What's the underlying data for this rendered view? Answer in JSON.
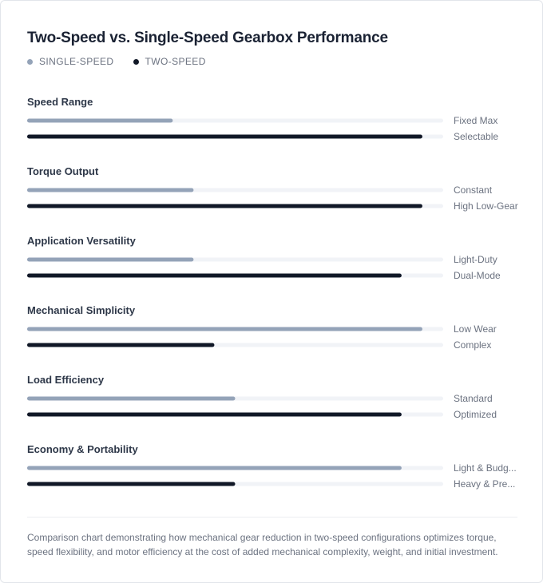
{
  "chart_data": {
    "type": "bar",
    "title": "Two-Speed vs. Single-Speed Gearbox Performance",
    "legend_position": "top-left",
    "xlim": [
      0,
      100
    ],
    "series": [
      {
        "name": "SINGLE-SPEED",
        "color": "#94a3b8",
        "values": [
          35,
          40,
          40,
          95,
          50,
          90
        ],
        "labels": [
          "Fixed Max",
          "Constant",
          "Light-Duty",
          "Low Wear",
          "Standard",
          "Light & Budg..."
        ]
      },
      {
        "name": "TWO-SPEED",
        "color": "#111827",
        "values": [
          95,
          95,
          90,
          45,
          90,
          50
        ],
        "labels": [
          "Selectable",
          "High Low-Gear",
          "Dual-Mode",
          "Complex",
          "Optimized",
          "Heavy & Pre..."
        ]
      }
    ],
    "categories": [
      "Speed Range",
      "Torque Output",
      "Application Versatility",
      "Mechanical Simplicity",
      "Load Efficiency",
      "Economy & Portability"
    ],
    "track_color": "#f1f3f7"
  },
  "caption": "Comparison chart demonstrating how mechanical gear reduction in two-speed configurations optimizes torque, speed flexibility, and motor efficiency at the cost of added mechanical complexity, weight, and initial investment."
}
